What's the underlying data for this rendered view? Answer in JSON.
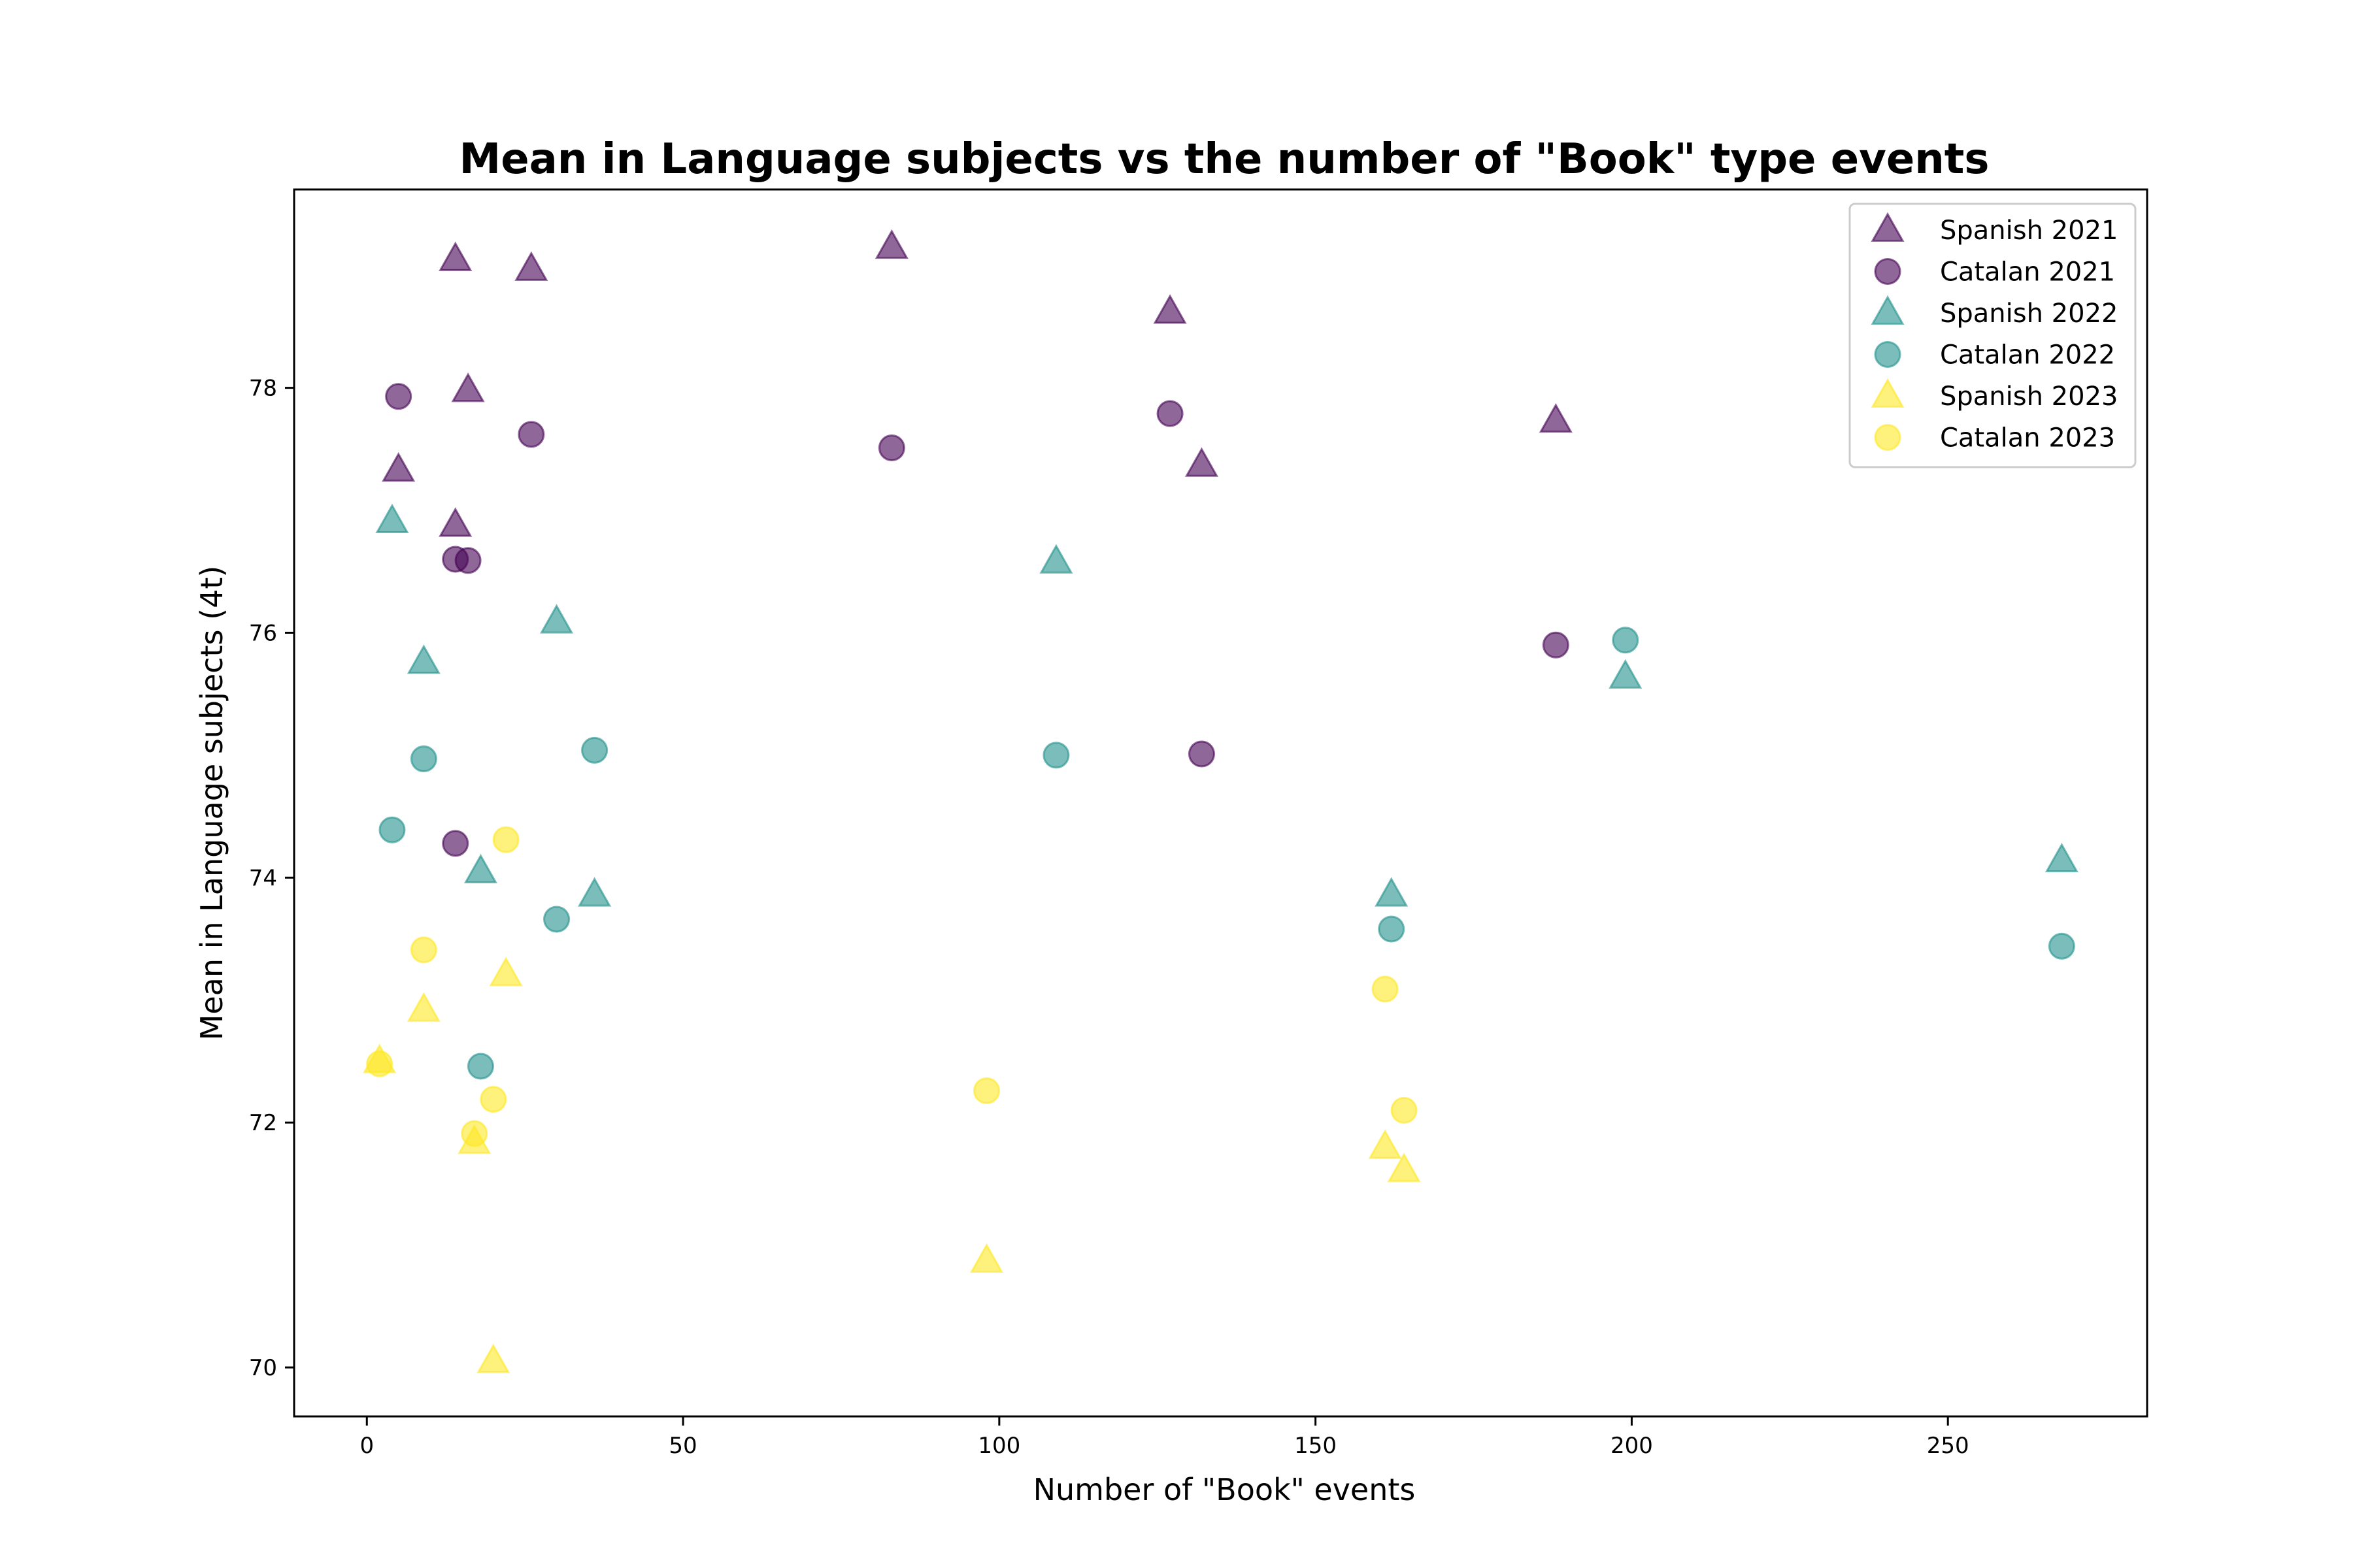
{
  "chart_data": {
    "type": "scatter",
    "title": "Mean in Language subjects vs the number of \"Book\" type events",
    "xlabel": "Number of \"Book\" events",
    "ylabel": "Mean in Language subjects (4t)",
    "xlim": [
      -11.5,
      281.5
    ],
    "ylim": [
      69.6,
      79.62
    ],
    "xticks": [
      0,
      50,
      100,
      150,
      200,
      250
    ],
    "yticks": [
      70,
      72,
      74,
      76,
      78
    ],
    "grid": false,
    "legend_position": "top-right",
    "series": [
      {
        "name": "Spanish 2021",
        "marker": "triangle",
        "color": "#440154",
        "points": [
          [
            14,
            79.05
          ],
          [
            26,
            78.97
          ],
          [
            83,
            79.15
          ],
          [
            127,
            78.62
          ],
          [
            16,
            77.98
          ],
          [
            188,
            77.73
          ],
          [
            5,
            77.33
          ],
          [
            132,
            77.37
          ],
          [
            14,
            76.88
          ]
        ]
      },
      {
        "name": "Catalan 2021",
        "marker": "circle",
        "color": "#440154",
        "points": [
          [
            5,
            77.93
          ],
          [
            26,
            77.62
          ],
          [
            83,
            77.51
          ],
          [
            127,
            77.79
          ],
          [
            14,
            76.6
          ],
          [
            16,
            76.59
          ],
          [
            188,
            75.9
          ],
          [
            132,
            75.01
          ],
          [
            14,
            74.28
          ]
        ]
      },
      {
        "name": "Spanish 2022",
        "marker": "triangle",
        "color": "#21918c",
        "points": [
          [
            4,
            76.91
          ],
          [
            109,
            76.58
          ],
          [
            30,
            76.09
          ],
          [
            9,
            75.76
          ],
          [
            199,
            75.64
          ],
          [
            18,
            74.05
          ],
          [
            36,
            73.86
          ],
          [
            162,
            73.86
          ],
          [
            268,
            74.14
          ]
        ]
      },
      {
        "name": "Catalan 2022",
        "marker": "circle",
        "color": "#21918c",
        "points": [
          [
            199,
            75.94
          ],
          [
            36,
            75.04
          ],
          [
            109,
            75.0
          ],
          [
            9,
            74.97
          ],
          [
            4,
            74.39
          ],
          [
            30,
            73.66
          ],
          [
            162,
            73.58
          ],
          [
            268,
            73.44
          ],
          [
            18,
            72.46
          ]
        ]
      },
      {
        "name": "Spanish 2023",
        "marker": "triangle",
        "color": "#fde725",
        "points": [
          [
            22,
            73.21
          ],
          [
            9,
            72.92
          ],
          [
            2,
            72.5
          ],
          [
            17,
            71.84
          ],
          [
            161,
            71.8
          ],
          [
            164,
            71.61
          ],
          [
            98,
            70.87
          ],
          [
            20,
            70.05
          ]
        ]
      },
      {
        "name": "Catalan 2023",
        "marker": "circle",
        "color": "#fde725",
        "points": [
          [
            22,
            74.31
          ],
          [
            9,
            73.41
          ],
          [
            161,
            73.09
          ],
          [
            2,
            72.48
          ],
          [
            98,
            72.26
          ],
          [
            20,
            72.19
          ],
          [
            164,
            72.1
          ],
          [
            17,
            71.91
          ]
        ]
      }
    ]
  }
}
